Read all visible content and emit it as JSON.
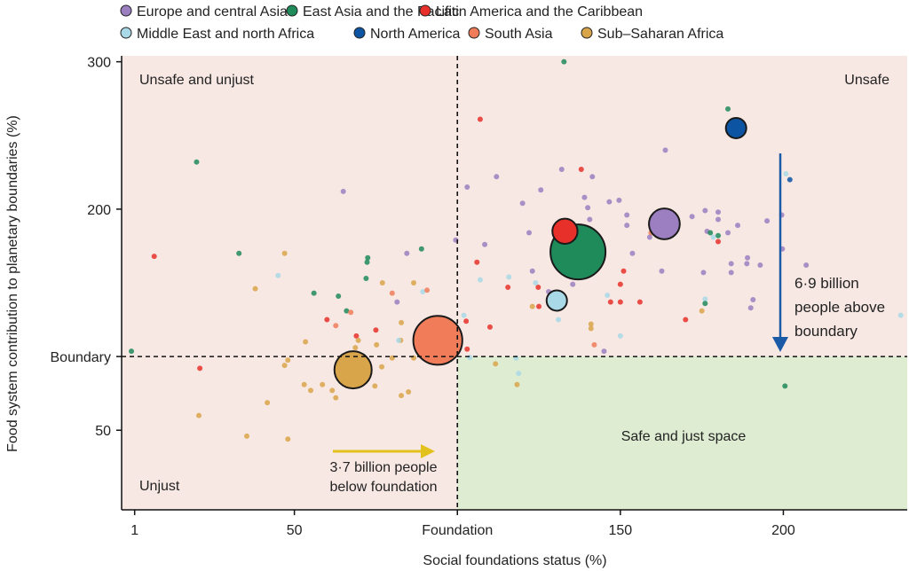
{
  "chart_data": {
    "type": "scatter",
    "xlabel": "Social foundations status (%)",
    "ylabel": "Food system contribution to planetary boundaries (%)",
    "xlim": [
      -3,
      238
    ],
    "ylim": [
      -4,
      304
    ],
    "x_ticks": [
      {
        "value": 1,
        "label": "1"
      },
      {
        "value": 50,
        "label": "50"
      },
      {
        "value": 100,
        "label": "Foundation"
      },
      {
        "value": 150,
        "label": "150"
      },
      {
        "value": 200,
        "label": "200"
      }
    ],
    "y_ticks": [
      {
        "value": 50,
        "label": "50"
      },
      {
        "value": 100,
        "label": "Boundary"
      },
      {
        "value": 200,
        "label": "200"
      },
      {
        "value": 300,
        "label": "300"
      }
    ],
    "threshold_x": 100,
    "threshold_y": 100,
    "legend_position": "top",
    "regions": [
      {
        "key": "eca",
        "name": "Europe and central Asia",
        "color": "#9b7fc0"
      },
      {
        "key": "eap",
        "name": "East Asia and the Pacific",
        "color": "#1f8a5a"
      },
      {
        "key": "lac",
        "name": "Latin America and the Caribbean",
        "color": "#e8302a"
      },
      {
        "key": "mena",
        "name": "Middle East and north Africa",
        "color": "#a9d9e6"
      },
      {
        "key": "na",
        "name": "North America",
        "color": "#0d55a3"
      },
      {
        "key": "sa",
        "name": "South Asia",
        "color": "#f07c5a"
      },
      {
        "key": "ssa",
        "name": "Sub–Saharan Africa",
        "color": "#d9a54a"
      }
    ],
    "region_aggregates": [
      {
        "region": "ssa",
        "x": 68,
        "y": 91,
        "bubble_size": 1.1
      },
      {
        "region": "sa",
        "x": 94,
        "y": 111,
        "bubble_size": 1.9
      },
      {
        "region": "eap",
        "x": 137,
        "y": 171,
        "bubble_size": 2.4
      },
      {
        "region": "lac",
        "x": 133,
        "y": 185,
        "bubble_size": 0.5
      },
      {
        "region": "mena",
        "x": 130.5,
        "y": 138,
        "bubble_size": 0.33
      },
      {
        "region": "eca",
        "x": 163.5,
        "y": 190,
        "bubble_size": 0.75
      },
      {
        "region": "na",
        "x": 185.5,
        "y": 255,
        "bubble_size": 0.33
      }
    ],
    "countries": [
      [
        "eap",
        20,
        232
      ],
      [
        "eca",
        65,
        212
      ],
      [
        "lac",
        7,
        168
      ],
      [
        "eap",
        33,
        170
      ],
      [
        "ssa",
        47,
        170
      ],
      [
        "mena",
        45,
        155
      ],
      [
        "ssa",
        38,
        146
      ],
      [
        "eap",
        56,
        143
      ],
      [
        "eap",
        63.5,
        141
      ],
      [
        "eap",
        72.5,
        167
      ],
      [
        "eap",
        72.3,
        164
      ],
      [
        "eap",
        72,
        153
      ],
      [
        "eap",
        89,
        173
      ],
      [
        "eca",
        84.5,
        170
      ],
      [
        "eca",
        81.5,
        137
      ],
      [
        "ssa",
        77,
        150
      ],
      [
        "sa",
        80,
        143
      ],
      [
        "ssa",
        86.6,
        150
      ],
      [
        "mena",
        89.4,
        144
      ],
      [
        "sa",
        90.7,
        145
      ],
      [
        "eap",
        66,
        131
      ],
      [
        "sa",
        67.3,
        130
      ],
      [
        "lac",
        60,
        125
      ],
      [
        "sa",
        62.7,
        121
      ],
      [
        "lac",
        75,
        118
      ],
      [
        "lac",
        69,
        114
      ],
      [
        "ssa",
        69.6,
        111
      ],
      [
        "ssa",
        53.4,
        110
      ],
      [
        "ssa",
        75.2,
        108
      ],
      [
        "ssa",
        82.6,
        111
      ],
      [
        "mena",
        82,
        111
      ],
      [
        "ssa",
        82.8,
        123
      ],
      [
        "ssa",
        68.7,
        106
      ],
      [
        "eap",
        0,
        103.6
      ],
      [
        "ssa",
        48,
        97.6
      ],
      [
        "ssa",
        47,
        94
      ],
      [
        "lac",
        21,
        92
      ],
      [
        "ssa",
        80,
        99
      ],
      [
        "ssa",
        86.6,
        99
      ],
      [
        "ssa",
        76.8,
        93
      ],
      [
        "ssa",
        53,
        81
      ],
      [
        "ssa",
        55,
        77
      ],
      [
        "ssa",
        58.6,
        81
      ],
      [
        "ssa",
        61.6,
        77
      ],
      [
        "ssa",
        62.7,
        72
      ],
      [
        "ssa",
        74.7,
        80
      ],
      [
        "ssa",
        82.8,
        73.5
      ],
      [
        "ssa",
        85,
        76
      ],
      [
        "ssa",
        41.7,
        68.7
      ],
      [
        "ssa",
        20.7,
        60
      ],
      [
        "ssa",
        35.4,
        46
      ],
      [
        "ssa",
        48,
        44
      ],
      [
        "lac",
        98.4,
        103
      ],
      [
        "eap",
        96,
        98
      ],
      [
        "eap",
        132.7,
        300
      ],
      [
        "lac",
        107,
        261
      ],
      [
        "eap",
        183,
        268
      ],
      [
        "eca",
        163.8,
        240
      ],
      [
        "eca",
        112,
        222
      ],
      [
        "eca",
        132,
        227
      ],
      [
        "lac",
        138,
        227
      ],
      [
        "eca",
        141.4,
        222
      ],
      [
        "eca",
        103,
        215
      ],
      [
        "eca",
        125.6,
        213
      ],
      [
        "mena",
        200.8,
        224
      ],
      [
        "na",
        202,
        220
      ],
      [
        "eca",
        120,
        204
      ],
      [
        "eca",
        139,
        208
      ],
      [
        "eca",
        140,
        201
      ],
      [
        "eca",
        146.6,
        205
      ],
      [
        "eca",
        149.6,
        206
      ],
      [
        "eca",
        140.6,
        193
      ],
      [
        "eca",
        152,
        196
      ],
      [
        "eca",
        152,
        189
      ],
      [
        "eca",
        172,
        195
      ],
      [
        "eca",
        176,
        199
      ],
      [
        "eca",
        180,
        198
      ],
      [
        "eca",
        180,
        193
      ],
      [
        "eca",
        186,
        189
      ],
      [
        "eca",
        195,
        192
      ],
      [
        "eca",
        199.5,
        196
      ],
      [
        "eca",
        176.6,
        185
      ],
      [
        "eap",
        177.6,
        184
      ],
      [
        "eap",
        180,
        182
      ],
      [
        "mena",
        178.5,
        181
      ],
      [
        "lac",
        180,
        178
      ],
      [
        "eca",
        183,
        184
      ],
      [
        "sa",
        159.4,
        184
      ],
      [
        "eca",
        159,
        181
      ],
      [
        "eca",
        122,
        184
      ],
      [
        "eca",
        108.4,
        176
      ],
      [
        "eca",
        99.5,
        179
      ],
      [
        "eca",
        153.7,
        170
      ],
      [
        "eca",
        199.7,
        173
      ],
      [
        "eca",
        189,
        167
      ],
      [
        "eca",
        188.8,
        163
      ],
      [
        "eca",
        192.9,
        162
      ],
      [
        "eca",
        184,
        163
      ],
      [
        "eca",
        207,
        162
      ],
      [
        "eca",
        175.5,
        157
      ],
      [
        "eca",
        184,
        157
      ],
      [
        "eca",
        162.7,
        158
      ],
      [
        "eca",
        123,
        158
      ],
      [
        "eca",
        135.4,
        149
      ],
      [
        "eca",
        128,
        144
      ],
      [
        "eca",
        190.7,
        138.6
      ],
      [
        "eca",
        190,
        133
      ],
      [
        "lac",
        151,
        158
      ],
      [
        "lac",
        106,
        164
      ],
      [
        "lac",
        115.5,
        147
      ],
      [
        "lac",
        150,
        149
      ],
      [
        "lac",
        150,
        137
      ],
      [
        "lac",
        156,
        137
      ],
      [
        "lac",
        124.8,
        147
      ],
      [
        "lac",
        147,
        137
      ],
      [
        "lac",
        170,
        125
      ],
      [
        "lac",
        125,
        134
      ],
      [
        "lac",
        102.7,
        124
      ],
      [
        "lac",
        110,
        120
      ],
      [
        "lac",
        103,
        105
      ],
      [
        "mena",
        107,
        152
      ],
      [
        "mena",
        115.8,
        154
      ],
      [
        "mena",
        124,
        150
      ],
      [
        "mena",
        146,
        141.6
      ],
      [
        "mena",
        131,
        125
      ],
      [
        "mena",
        150,
        114
      ],
      [
        "mena",
        176,
        139
      ],
      [
        "mena",
        236,
        128
      ],
      [
        "mena",
        102,
        128
      ],
      [
        "mena",
        118,
        99
      ],
      [
        "mena",
        118.8,
        88.6
      ],
      [
        "eap",
        176,
        136
      ],
      [
        "ssa",
        175,
        131
      ],
      [
        "ssa",
        123,
        134
      ],
      [
        "ssa",
        141,
        122
      ],
      [
        "ssa",
        141,
        119
      ],
      [
        "sa",
        142,
        108
      ],
      [
        "ssa",
        111.7,
        95
      ],
      [
        "ssa",
        118.3,
        81
      ],
      [
        "eap",
        200.5,
        80
      ],
      [
        "eca",
        145,
        103.6
      ],
      [
        "mena",
        103.8,
        99.4
      ],
      [
        "eap",
        132,
        142
      ],
      [
        "lac",
        137,
        162
      ],
      [
        "lac",
        135,
        175
      ],
      [
        "lac",
        141,
        171
      ],
      [
        "lac",
        141,
        161
      ],
      [
        "mena",
        138,
        174
      ]
    ],
    "quadrant_labels": {
      "top_left": "Unsafe and unjust",
      "top_right": "Unsafe",
      "bottom_left": "Unjust",
      "bottom_right": "Safe and just space"
    },
    "quadrant_colors": {
      "unsafe": "#f8e8e4",
      "safe": "#deecd2"
    },
    "annotations": [
      {
        "text": [
          "3·7 billion people",
          "below foundation"
        ],
        "arrow": "right",
        "color": "#e2c11c"
      },
      {
        "text": [
          "6·9 billion",
          "people above",
          "boundary"
        ],
        "arrow": "down",
        "color": "#1a5aa6"
      }
    ]
  }
}
